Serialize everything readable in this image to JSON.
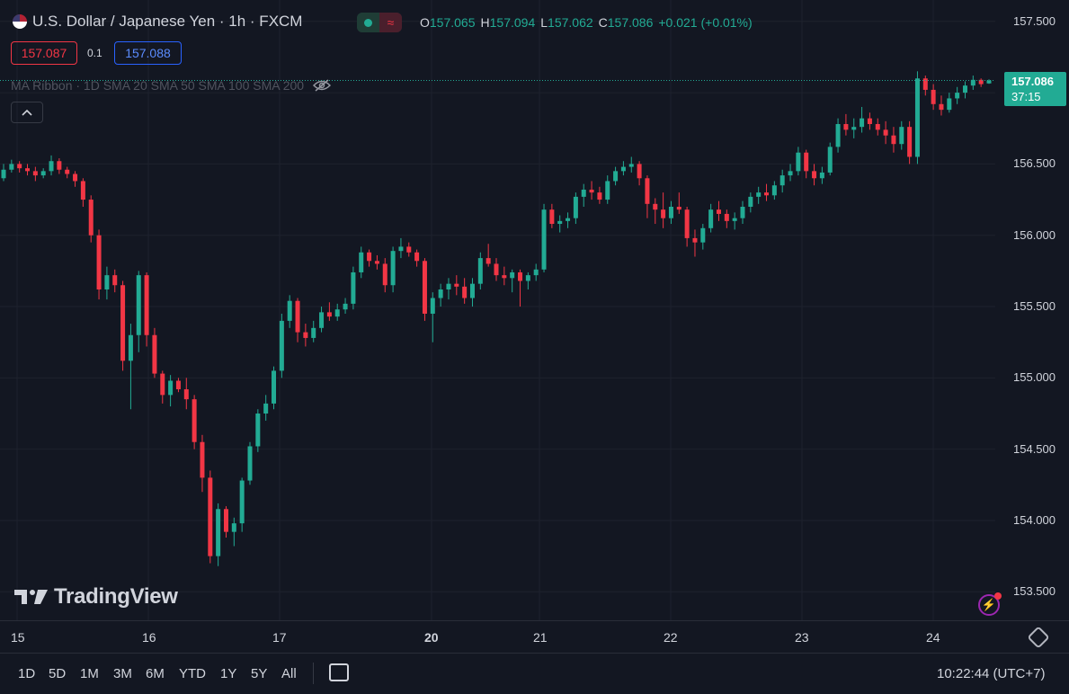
{
  "header": {
    "symbol_title": "U.S. Dollar / Japanese Yen · 1h · FXCM",
    "ohlc": {
      "o_label": "O",
      "o": "157.065",
      "h_label": "H",
      "h": "157.094",
      "l_label": "L",
      "l": "157.062",
      "c_label": "C",
      "c": "157.086",
      "change": "+0.021 (+0.01%)"
    },
    "wave_icon": "≈"
  },
  "trade": {
    "bid": "157.087",
    "spread": "0.1",
    "ask": "157.088"
  },
  "indicator": {
    "text": "MA Ribbon · 1D SMA 20 SMA 50 SMA 100 SMA 200"
  },
  "price_axis": {
    "ticks": [
      "157.500",
      "157.000",
      "156.500",
      "156.000",
      "155.500",
      "155.000",
      "154.500",
      "154.000",
      "153.500"
    ],
    "last_price": "157.086",
    "countdown": "37:15"
  },
  "time_axis": {
    "ticks": [
      "15",
      "16",
      "17",
      "20",
      "21",
      "22",
      "23",
      "24"
    ]
  },
  "watermark": "TradingView",
  "ranges": [
    "1D",
    "5D",
    "1M",
    "3M",
    "6M",
    "YTD",
    "1Y",
    "5Y",
    "All"
  ],
  "clock": "10:22:44 (UTC+7)",
  "colors": {
    "up": "#22ab94",
    "down": "#f23645",
    "background": "#131722",
    "grid": "#1e222d"
  },
  "chart_data": {
    "type": "candlestick",
    "title": "U.S. Dollar / Japanese Yen · 1h · FXCM",
    "x_labels": [
      "15",
      "16",
      "17",
      "20",
      "21",
      "22",
      "23",
      "24"
    ],
    "ylim": [
      153.3,
      157.65
    ],
    "candles": [
      [
        156.4,
        156.5,
        156.38,
        156.46
      ],
      [
        156.46,
        156.53,
        156.44,
        156.5
      ],
      [
        156.5,
        156.52,
        156.44,
        156.47
      ],
      [
        156.47,
        156.5,
        156.42,
        156.45
      ],
      [
        156.45,
        156.48,
        156.38,
        156.42
      ],
      [
        156.42,
        156.47,
        156.4,
        156.45
      ],
      [
        156.45,
        156.56,
        156.42,
        156.52
      ],
      [
        156.52,
        156.54,
        156.43,
        156.46
      ],
      [
        156.46,
        156.48,
        156.4,
        156.43
      ],
      [
        156.43,
        156.45,
        156.34,
        156.38
      ],
      [
        156.38,
        156.4,
        156.2,
        156.25
      ],
      [
        156.25,
        156.28,
        155.95,
        156.0
      ],
      [
        156.0,
        156.04,
        155.55,
        155.62
      ],
      [
        155.62,
        155.78,
        155.55,
        155.72
      ],
      [
        155.72,
        155.76,
        155.6,
        155.65
      ],
      [
        155.65,
        155.68,
        155.05,
        155.12
      ],
      [
        155.12,
        155.38,
        154.78,
        155.3
      ],
      [
        155.3,
        155.75,
        155.18,
        155.72
      ],
      [
        155.72,
        155.74,
        155.22,
        155.3
      ],
      [
        155.3,
        155.35,
        155.0,
        155.03
      ],
      [
        155.03,
        155.05,
        154.82,
        154.88
      ],
      [
        154.88,
        155.02,
        154.8,
        154.98
      ],
      [
        154.98,
        155.0,
        154.9,
        154.92
      ],
      [
        154.92,
        155.0,
        154.78,
        154.85
      ],
      [
        154.85,
        154.88,
        154.5,
        154.55
      ],
      [
        154.55,
        154.6,
        154.2,
        154.3
      ],
      [
        154.3,
        154.35,
        153.7,
        153.75
      ],
      [
        153.75,
        154.12,
        153.68,
        154.08
      ],
      [
        154.08,
        154.1,
        153.88,
        153.92
      ],
      [
        153.92,
        154.02,
        153.82,
        153.98
      ],
      [
        153.98,
        154.3,
        153.92,
        154.28
      ],
      [
        154.28,
        154.55,
        154.25,
        154.52
      ],
      [
        154.52,
        154.78,
        154.48,
        154.75
      ],
      [
        154.75,
        154.88,
        154.7,
        154.82
      ],
      [
        154.82,
        155.08,
        154.78,
        155.05
      ],
      [
        155.05,
        155.45,
        155.0,
        155.4
      ],
      [
        155.4,
        155.58,
        155.35,
        155.54
      ],
      [
        155.54,
        155.56,
        155.25,
        155.32
      ],
      [
        155.32,
        155.38,
        155.22,
        155.28
      ],
      [
        155.28,
        155.4,
        155.25,
        155.35
      ],
      [
        155.35,
        155.5,
        155.32,
        155.46
      ],
      [
        155.46,
        155.53,
        155.4,
        155.43
      ],
      [
        155.43,
        155.52,
        155.4,
        155.48
      ],
      [
        155.48,
        155.56,
        155.45,
        155.52
      ],
      [
        155.52,
        155.78,
        155.48,
        155.74
      ],
      [
        155.74,
        155.92,
        155.7,
        155.88
      ],
      [
        155.88,
        155.9,
        155.78,
        155.82
      ],
      [
        155.82,
        155.86,
        155.76,
        155.8
      ],
      [
        155.8,
        155.84,
        155.6,
        155.65
      ],
      [
        155.65,
        155.92,
        155.6,
        155.89
      ],
      [
        155.89,
        155.98,
        155.84,
        155.92
      ],
      [
        155.92,
        155.95,
        155.85,
        155.88
      ],
      [
        155.88,
        155.9,
        155.78,
        155.82
      ],
      [
        155.82,
        155.84,
        155.4,
        155.45
      ],
      [
        155.45,
        155.6,
        155.25,
        155.56
      ],
      [
        155.56,
        155.66,
        155.5,
        155.62
      ],
      [
        155.62,
        155.7,
        155.55,
        155.66
      ],
      [
        155.66,
        155.72,
        155.58,
        155.64
      ],
      [
        155.64,
        155.7,
        155.52,
        155.56
      ],
      [
        155.56,
        155.7,
        155.5,
        155.66
      ],
      [
        155.66,
        155.88,
        155.62,
        155.84
      ],
      [
        155.84,
        155.94,
        155.78,
        155.8
      ],
      [
        155.8,
        155.84,
        155.68,
        155.72
      ],
      [
        155.72,
        155.78,
        155.65,
        155.7
      ],
      [
        155.7,
        155.76,
        155.6,
        155.74
      ],
      [
        155.74,
        155.76,
        155.5,
        155.68
      ],
      [
        155.68,
        155.74,
        155.62,
        155.72
      ],
      [
        155.72,
        155.8,
        155.68,
        155.76
      ],
      [
        155.76,
        156.22,
        155.74,
        156.18
      ],
      [
        156.18,
        156.22,
        156.05,
        156.08
      ],
      [
        156.08,
        156.14,
        156.02,
        156.1
      ],
      [
        156.1,
        156.16,
        156.05,
        156.12
      ],
      [
        156.12,
        156.3,
        156.08,
        156.27
      ],
      [
        156.27,
        156.36,
        156.2,
        156.32
      ],
      [
        156.32,
        156.38,
        156.25,
        156.3
      ],
      [
        156.3,
        156.34,
        156.22,
        156.25
      ],
      [
        156.25,
        156.42,
        156.22,
        156.38
      ],
      [
        156.38,
        156.48,
        156.35,
        156.45
      ],
      [
        156.45,
        156.52,
        156.42,
        156.48
      ],
      [
        156.48,
        156.55,
        156.44,
        156.5
      ],
      [
        156.5,
        156.52,
        156.35,
        156.4
      ],
      [
        156.4,
        156.42,
        156.12,
        156.22
      ],
      [
        156.22,
        156.26,
        156.08,
        156.18
      ],
      [
        156.18,
        156.3,
        156.05,
        156.12
      ],
      [
        156.12,
        156.24,
        156.08,
        156.2
      ],
      [
        156.2,
        156.3,
        156.15,
        156.18
      ],
      [
        156.18,
        156.2,
        155.92,
        155.98
      ],
      [
        155.98,
        156.04,
        155.85,
        155.95
      ],
      [
        155.95,
        156.08,
        155.9,
        156.05
      ],
      [
        156.05,
        156.22,
        156.02,
        156.18
      ],
      [
        156.18,
        156.24,
        156.1,
        156.15
      ],
      [
        156.15,
        156.18,
        156.05,
        156.1
      ],
      [
        156.1,
        156.16,
        156.04,
        156.12
      ],
      [
        156.12,
        156.24,
        156.08,
        156.2
      ],
      [
        156.2,
        156.3,
        156.16,
        156.27
      ],
      [
        156.27,
        156.34,
        156.22,
        156.3
      ],
      [
        156.3,
        156.36,
        156.24,
        156.28
      ],
      [
        156.28,
        156.38,
        156.25,
        156.35
      ],
      [
        156.35,
        156.46,
        156.3,
        156.42
      ],
      [
        156.42,
        156.5,
        156.38,
        156.45
      ],
      [
        156.45,
        156.62,
        156.42,
        156.58
      ],
      [
        156.58,
        156.6,
        156.4,
        156.45
      ],
      [
        156.45,
        156.5,
        156.35,
        156.4
      ],
      [
        156.4,
        156.48,
        156.36,
        156.44
      ],
      [
        156.44,
        156.65,
        156.42,
        156.62
      ],
      [
        156.62,
        156.82,
        156.58,
        156.78
      ],
      [
        156.78,
        156.85,
        156.7,
        156.74
      ],
      [
        156.74,
        156.82,
        156.68,
        156.76
      ],
      [
        156.76,
        156.9,
        156.72,
        156.82
      ],
      [
        156.82,
        156.86,
        156.74,
        156.78
      ],
      [
        156.78,
        156.82,
        156.7,
        156.74
      ],
      [
        156.74,
        156.8,
        156.64,
        156.7
      ],
      [
        156.7,
        156.76,
        156.58,
        156.64
      ],
      [
        156.64,
        156.8,
        156.6,
        156.76
      ],
      [
        156.76,
        156.8,
        156.5,
        156.55
      ],
      [
        156.55,
        157.15,
        156.5,
        157.1
      ],
      [
        157.1,
        157.12,
        156.98,
        157.02
      ],
      [
        157.02,
        157.06,
        156.88,
        156.92
      ],
      [
        156.92,
        156.98,
        156.84,
        156.88
      ],
      [
        156.88,
        157.0,
        156.86,
        156.96
      ],
      [
        156.96,
        157.04,
        156.92,
        157.0
      ],
      [
        157.0,
        157.08,
        156.96,
        157.05
      ],
      [
        157.05,
        157.12,
        157.02,
        157.09
      ],
      [
        157.09,
        157.1,
        157.04,
        157.06
      ],
      [
        157.065,
        157.094,
        157.062,
        157.086
      ]
    ]
  }
}
